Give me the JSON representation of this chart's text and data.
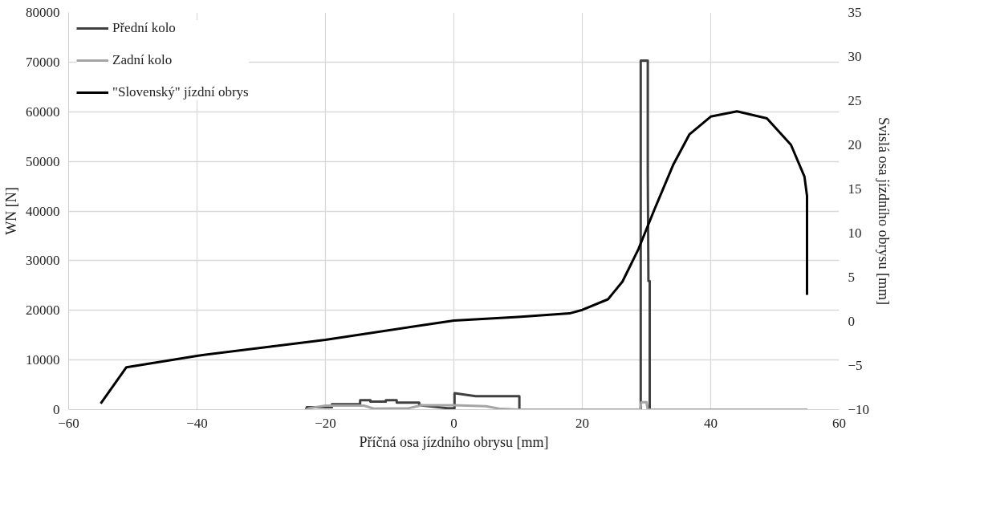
{
  "chart_data": {
    "type": "line",
    "xlabel": "Příčná osa jízdního obrysu [mm]",
    "ylabel": "WN [N]",
    "y2label": "Svislá osa jízdního obrysu [mm]",
    "xlim": [
      -60,
      60
    ],
    "xticks": [
      -60,
      -40,
      -20,
      0,
      20,
      40,
      60
    ],
    "ylim": [
      0,
      80000
    ],
    "yticks": [
      0,
      10000,
      20000,
      30000,
      40000,
      50000,
      60000,
      70000,
      80000
    ],
    "y2lim": [
      -10,
      35
    ],
    "y2ticks": [
      -10,
      -5,
      0,
      5,
      10,
      15,
      20,
      25,
      30,
      35
    ],
    "grid": true,
    "legend": "top left",
    "line_style": "solid",
    "marker": "none",
    "series": [
      {
        "name": "Přední kolo",
        "color": "#404040",
        "x": [
          -23,
          -22.9,
          -19,
          -19,
          -14.6,
          -14.6,
          -13,
          -13,
          -10.6,
          -10.6,
          -8.9,
          -8.9,
          -5.4,
          -5.4,
          -1,
          0.1,
          0.1,
          3.4,
          10.2,
          10.2,
          29,
          29.1,
          29.1,
          29.1,
          30.2,
          30.2,
          30.3,
          30.5,
          30.5,
          55
        ],
        "values": [
          0,
          500,
          500,
          1100,
          1100,
          1900,
          1900,
          1600,
          1600,
          1900,
          1900,
          1400,
          1400,
          900,
          300,
          300,
          3300,
          2700,
          2700,
          0,
          0,
          0,
          41700,
          70300,
          70300,
          47300,
          25900,
          25900,
          0,
          0
        ]
      },
      {
        "name": "Zadní kolo",
        "color": "#a5a5a5",
        "x": [
          -23,
          -22.5,
          -20,
          -14,
          -12.5,
          -7,
          -5,
          0,
          5,
          7,
          10,
          29,
          29.2,
          30,
          30.2,
          55
        ],
        "values": [
          0,
          300,
          800,
          800,
          200,
          300,
          900,
          900,
          700,
          200,
          0,
          0,
          1500,
          1500,
          0,
          0
        ]
      },
      {
        "name": "\"Slovenský\" jízdní obrys",
        "color": "#000000",
        "axis": "y2",
        "x": [
          -55,
          -51,
          -40,
          -20,
          0,
          10,
          18,
          20,
          24,
          26.25,
          28.75,
          31.25,
          34.2,
          36.7,
          40,
          44.1,
          48.75,
          52.5,
          54.6,
          55,
          55
        ],
        "values": [
          -9.3,
          -5.2,
          -3.9,
          -2.1,
          0.1,
          0.5,
          0.9,
          1.3,
          2.5,
          4.5,
          8.2,
          12.7,
          17.8,
          21.2,
          23.2,
          23.8,
          23.0,
          20.0,
          16.4,
          14.2,
          3.0
        ]
      }
    ]
  }
}
